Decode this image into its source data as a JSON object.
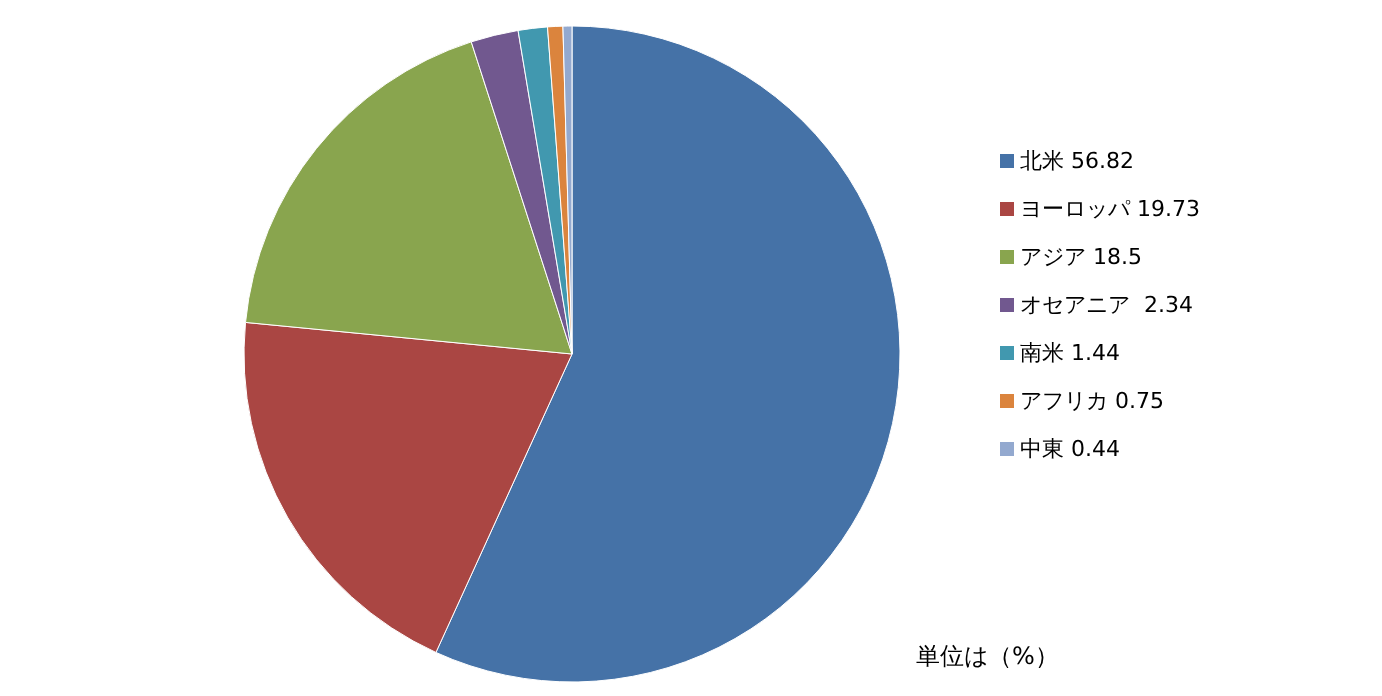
{
  "chart_data": {
    "type": "pie",
    "categories": [
      "北米 56.82",
      "ヨーロッパ 19.73",
      "アジア 18.5",
      "オセアニア  2.34",
      "南米 1.44",
      "アフリカ 0.75",
      "中東 0.44"
    ],
    "values": [
      56.82,
      19.73,
      18.5,
      2.34,
      1.44,
      0.75,
      0.44
    ],
    "colors": [
      "#4572a7",
      "#aa4643",
      "#89a54e",
      "#71588f",
      "#4198af",
      "#db843d",
      "#93a9cf"
    ],
    "legend": "right",
    "annotations": [
      "単位は（%）"
    ]
  }
}
